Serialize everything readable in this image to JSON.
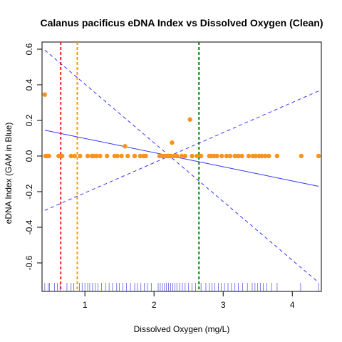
{
  "chart_data": {
    "type": "scatter",
    "title": "Calanus pacificus eDNA Index vs Dissolved Oxygen (Clean)",
    "xlabel": "Dissolved Oxygen (mg/L)",
    "ylabel": "eDNA Index (GAM in Blue)",
    "xlim": [
      0.38,
      4.42
    ],
    "ylim": [
      -0.76,
      0.64
    ],
    "x_ticks": [
      1,
      2,
      3,
      4
    ],
    "y_ticks": [
      -0.6,
      -0.4,
      -0.2,
      0.0,
      0.2,
      0.4,
      0.6
    ],
    "x_tick_labels": [
      "1",
      "2",
      "3",
      "4"
    ],
    "y_tick_labels": [
      "-0.6",
      "-0.4",
      "-0.2",
      "0.0",
      "0.2",
      "0.4",
      "0.6"
    ],
    "grid": false,
    "point_color": "#f7931e",
    "fit_color": "#3333ff",
    "points": [
      {
        "x": 0.42,
        "y": 0.345
      },
      {
        "x": 0.43,
        "y": 0
      },
      {
        "x": 0.46,
        "y": 0
      },
      {
        "x": 0.48,
        "y": 0
      },
      {
        "x": 0.62,
        "y": 0
      },
      {
        "x": 0.67,
        "y": 0
      },
      {
        "x": 0.8,
        "y": 0
      },
      {
        "x": 0.85,
        "y": 0
      },
      {
        "x": 0.93,
        "y": 0
      },
      {
        "x": 1.04,
        "y": 0
      },
      {
        "x": 1.1,
        "y": 0
      },
      {
        "x": 1.13,
        "y": 0
      },
      {
        "x": 1.17,
        "y": 0
      },
      {
        "x": 1.22,
        "y": 0
      },
      {
        "x": 1.32,
        "y": 0
      },
      {
        "x": 1.43,
        "y": 0
      },
      {
        "x": 1.47,
        "y": 0
      },
      {
        "x": 1.53,
        "y": 0
      },
      {
        "x": 1.58,
        "y": 0.055
      },
      {
        "x": 1.62,
        "y": 0
      },
      {
        "x": 1.72,
        "y": 0
      },
      {
        "x": 1.8,
        "y": 0
      },
      {
        "x": 1.85,
        "y": 0
      },
      {
        "x": 1.88,
        "y": 0
      },
      {
        "x": 2.08,
        "y": 0
      },
      {
        "x": 2.12,
        "y": 0
      },
      {
        "x": 2.15,
        "y": 0
      },
      {
        "x": 2.18,
        "y": 0
      },
      {
        "x": 2.21,
        "y": 0
      },
      {
        "x": 2.24,
        "y": 0
      },
      {
        "x": 2.26,
        "y": 0.075
      },
      {
        "x": 2.29,
        "y": 0
      },
      {
        "x": 2.33,
        "y": 0
      },
      {
        "x": 2.4,
        "y": 0
      },
      {
        "x": 2.45,
        "y": 0
      },
      {
        "x": 2.52,
        "y": 0.205
      },
      {
        "x": 2.55,
        "y": 0
      },
      {
        "x": 2.62,
        "y": 0
      },
      {
        "x": 2.68,
        "y": 0
      },
      {
        "x": 2.8,
        "y": 0
      },
      {
        "x": 2.83,
        "y": 0
      },
      {
        "x": 2.87,
        "y": 0
      },
      {
        "x": 2.91,
        "y": 0
      },
      {
        "x": 2.98,
        "y": 0
      },
      {
        "x": 3.05,
        "y": 0
      },
      {
        "x": 3.1,
        "y": 0
      },
      {
        "x": 3.17,
        "y": 0
      },
      {
        "x": 3.22,
        "y": 0
      },
      {
        "x": 3.27,
        "y": 0
      },
      {
        "x": 3.37,
        "y": 0
      },
      {
        "x": 3.43,
        "y": 0
      },
      {
        "x": 3.47,
        "y": 0
      },
      {
        "x": 3.52,
        "y": 0
      },
      {
        "x": 3.56,
        "y": 0
      },
      {
        "x": 3.61,
        "y": 0
      },
      {
        "x": 3.66,
        "y": 0
      },
      {
        "x": 3.78,
        "y": 0
      },
      {
        "x": 4.13,
        "y": 0
      },
      {
        "x": 4.38,
        "y": 0
      }
    ],
    "fit_line": {
      "x": [
        0.42,
        4.38
      ],
      "y": [
        0.145,
        -0.17
      ]
    },
    "ci_upper": {
      "x": [
        0.42,
        4.38
      ],
      "y": [
        -0.305,
        0.365
      ]
    },
    "ci_lower": {
      "x": [
        0.42,
        4.38
      ],
      "y": [
        0.595,
        -0.71
      ]
    },
    "vertical_lines": [
      {
        "x": 0.65,
        "color": "#ff2222"
      },
      {
        "x": 0.89,
        "color": "#ff9900"
      },
      {
        "x": 2.65,
        "color": "#008800"
      }
    ],
    "rug_x": [
      0.42,
      0.47,
      0.49,
      0.56,
      0.6,
      0.64,
      0.74,
      0.8,
      0.84,
      0.92,
      0.96,
      1.0,
      1.04,
      1.07,
      1.11,
      1.15,
      1.19,
      1.24,
      1.3,
      1.35,
      1.4,
      1.46,
      1.5,
      1.55,
      1.6,
      1.66,
      1.72,
      1.76,
      1.81,
      1.86,
      1.9,
      1.96,
      2.06,
      2.09,
      2.12,
      2.15,
      2.18,
      2.21,
      2.24,
      2.27,
      2.3,
      2.33,
      2.37,
      2.41,
      2.45,
      2.5,
      2.55,
      2.6,
      2.68,
      2.75,
      2.8,
      2.84,
      2.88,
      2.93,
      2.97,
      3.02,
      3.07,
      3.12,
      3.17,
      3.22,
      3.28,
      3.35,
      3.42,
      3.46,
      3.5,
      3.54,
      3.58,
      3.63,
      3.7,
      3.78,
      4.12,
      4.38
    ]
  }
}
